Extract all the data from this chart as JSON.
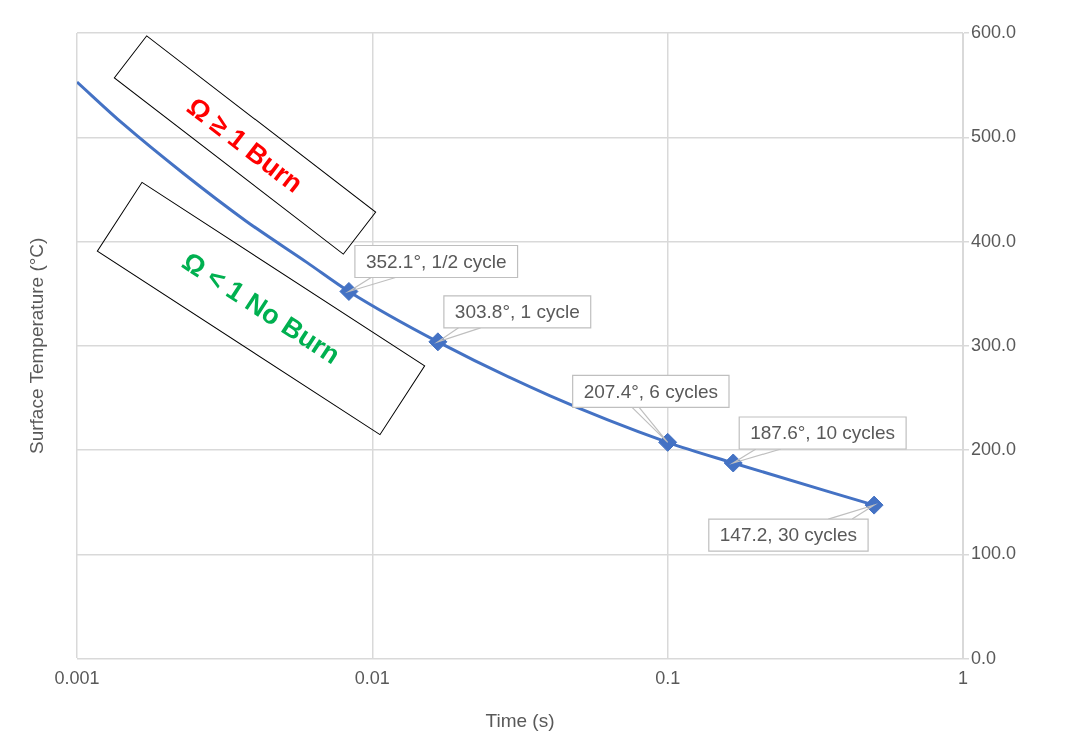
{
  "chart_data": {
    "type": "line",
    "xlabel": "Time (s)",
    "ylabel": "Surface Temperature (°C)",
    "annotations": [
      "Ω ≥ 1 Burn",
      "Ω < 1 No Burn"
    ],
    "log": "x",
    "grid": true,
    "legend": false,
    "xlim": [
      0.001,
      1
    ],
    "xticks": [
      0.001,
      0.01,
      0.1,
      1
    ],
    "ylim": [
      0,
      600
    ],
    "yticks": [
      {
        "value": 0,
        "label": "0.0"
      },
      {
        "value": 100,
        "label": "100.0"
      },
      {
        "value": 200,
        "label": "200.0"
      },
      {
        "value": 300,
        "label": "300.0"
      },
      {
        "value": 400,
        "label": "400.0"
      },
      {
        "value": 500,
        "label": "500.0"
      },
      {
        "value": 600,
        "label": "600.0"
      }
    ],
    "series": [
      {
        "color": "#4472c4",
        "marker": "none",
        "x": [
          0.001,
          0.00143,
          0.0023,
          0.00372,
          0.006,
          0.00833,
          0.01667,
          0.04,
          0.1,
          0.1667,
          0.5
        ],
        "values": [
          553,
          513,
          465,
          420,
          380,
          352.1,
          303.8,
          252,
          207.4,
          187.6,
          147.2
        ]
      },
      {
        "type": "scatter",
        "color": "#4472c4",
        "marker": "diamond",
        "x": [
          0.00833,
          0.01667,
          0.1,
          0.1667,
          0.5
        ],
        "values": [
          352.1,
          303.8,
          207.4,
          187.6,
          147.2
        ],
        "value_labels": [
          "352.1°, 1/2 cycle",
          "303.8°, 1 cycle",
          "207.4°, 6 cycles",
          "187.6°, 10 cycles",
          "147.2, 30 cycles"
        ]
      }
    ]
  }
}
